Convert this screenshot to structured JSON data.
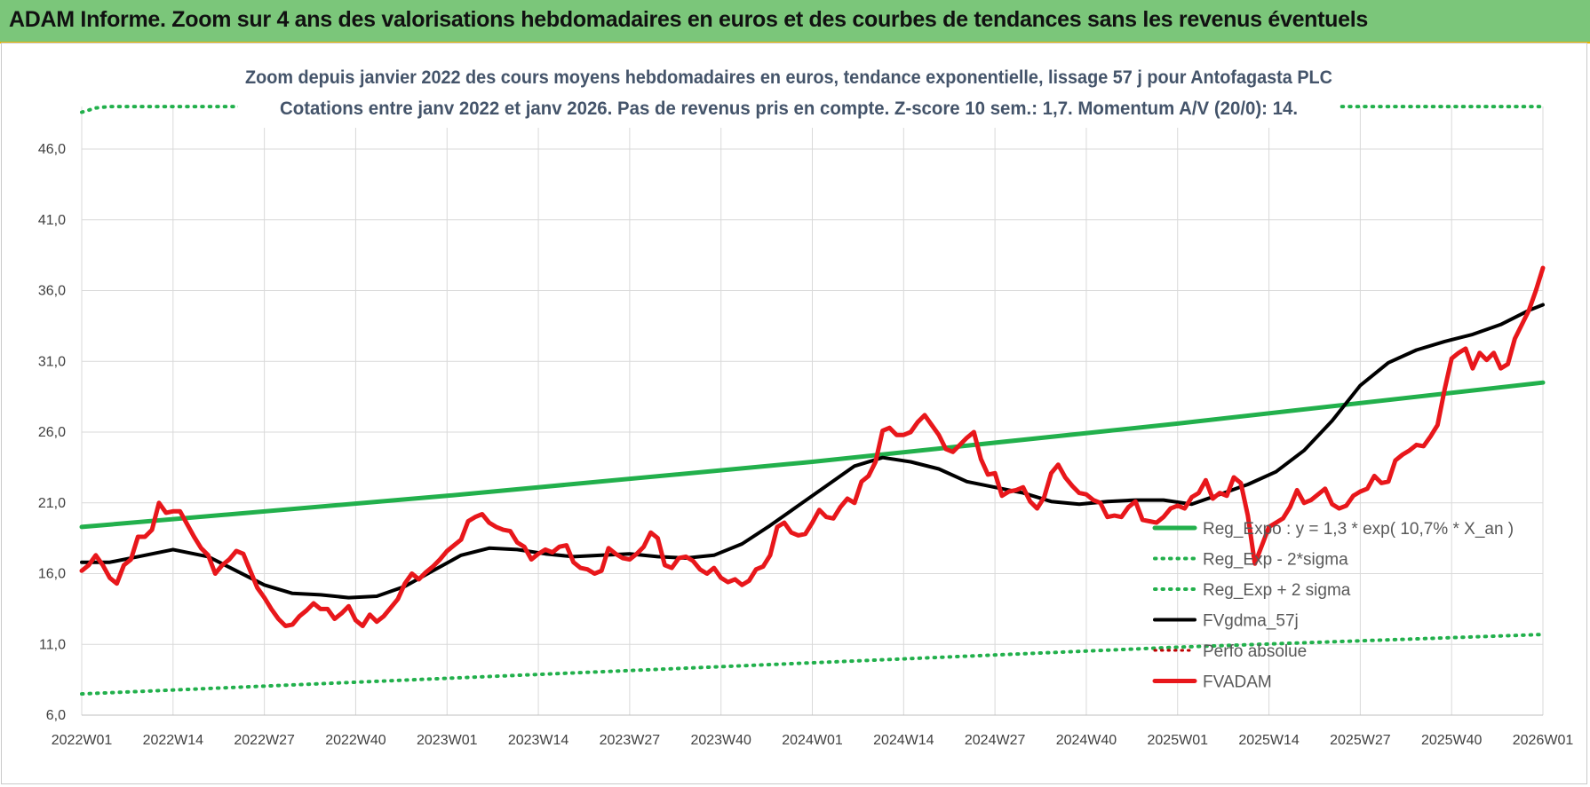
{
  "banner": {
    "title": "ADAM Informe. Zoom sur 4 ans des valorisations hebdomadaires en euros et des courbes de tendances sans les revenus éventuels"
  },
  "colors": {
    "banner_bg": "#7bc67a",
    "reg_expo": "#22b04c",
    "moving_average": "#000000",
    "fvadam": "#e8171b",
    "perfo_absolue": "#c00000",
    "grid": "#d9d9d9"
  },
  "chart_data": {
    "type": "line",
    "title": "Zoom depuis janvier 2022 des cours moyens hebdomadaires en euros, tendance exponentielle, lissage 57 j pour Antofagasta PLC",
    "subtitle": "Cotations entre janv 2022 et janv 2026. Pas de revenus pris en compte. Z-score 10 sem.: 1,7. Momentum A/V (20/0): 14.",
    "xlabel": "",
    "ylabel": "",
    "ylim": [
      6,
      49
    ],
    "yticks": [
      "6,0",
      "11,0",
      "16,0",
      "21,0",
      "26,0",
      "31,0",
      "36,0",
      "41,0",
      "46,0"
    ],
    "xticks": [
      "2022W01",
      "2022W14",
      "2022W27",
      "2022W40",
      "2023W01",
      "2023W14",
      "2023W27",
      "2023W40",
      "2024W01",
      "2024W14",
      "2024W27",
      "2024W40",
      "2025W01",
      "2025W14",
      "2025W27",
      "2025W40",
      "2026W01"
    ],
    "x_range_weeks": [
      0,
      208
    ],
    "grid": true,
    "legend_position": "right",
    "legend": [
      "Reg_Expo : y = 1,3 * exp( 10,7% *  X_an )",
      "Reg_Exp - 2*sigma",
      "Reg_Exp + 2 sigma",
      "FVgdma_57j",
      "Perfo absolue",
      "FVADAM"
    ],
    "series": [
      {
        "name": "Reg_Expo : y = 1,3 * exp( 10,7% *  X_an )",
        "style": "solid-thick",
        "x": [
          0,
          52,
          104,
          156,
          208
        ],
        "y": [
          19.3,
          21.5,
          23.9,
          26.6,
          29.5
        ]
      },
      {
        "name": "Reg_Exp - 2*sigma",
        "style": "dotted",
        "x": [
          0,
          52,
          104,
          156,
          208
        ],
        "y": [
          7.5,
          8.6,
          9.7,
          10.8,
          11.7
        ]
      },
      {
        "name": "Reg_Exp + 2 sigma",
        "style": "dotted",
        "x": [
          0,
          2,
          4,
          12,
          208
        ],
        "y": [
          48.6,
          48.9,
          49.0,
          49.0,
          49.0
        ]
      },
      {
        "name": "FVgdma_57j",
        "style": "solid",
        "x": [
          0,
          4,
          8,
          13,
          18,
          22,
          26,
          30,
          34,
          38,
          42,
          46,
          50,
          54,
          58,
          62,
          66,
          70,
          74,
          78,
          82,
          86,
          90,
          94,
          98,
          102,
          106,
          110,
          114,
          118,
          122,
          126,
          130,
          134,
          138,
          142,
          146,
          150,
          154,
          158,
          162,
          166,
          170,
          174,
          178,
          182,
          186,
          190,
          194,
          198,
          202,
          206,
          208
        ],
        "y": [
          16.8,
          16.8,
          17.2,
          17.7,
          17.2,
          16.2,
          15.2,
          14.6,
          14.5,
          14.3,
          14.4,
          15.1,
          16.2,
          17.3,
          17.8,
          17.7,
          17.4,
          17.2,
          17.3,
          17.4,
          17.2,
          17.1,
          17.3,
          18.1,
          19.4,
          20.8,
          22.2,
          23.6,
          24.2,
          23.9,
          23.4,
          22.5,
          22.1,
          21.7,
          21.1,
          20.9,
          21.1,
          21.2,
          21.2,
          20.9,
          21.6,
          22.3,
          23.2,
          24.7,
          26.8,
          29.3,
          30.9,
          31.8,
          32.4,
          32.9,
          33.6,
          34.6,
          35.0
        ]
      },
      {
        "name": "FVADAM",
        "style": "solid-thick",
        "x": [
          0,
          1,
          2,
          3,
          4,
          5,
          6,
          7,
          8,
          9,
          10,
          11,
          12,
          13,
          14,
          15,
          16,
          17,
          18,
          19,
          20,
          21,
          22,
          23,
          24,
          25,
          26,
          27,
          28,
          29,
          30,
          31,
          32,
          33,
          34,
          35,
          36,
          37,
          38,
          39,
          40,
          41,
          42,
          43,
          44,
          45,
          46,
          47,
          48,
          49,
          50,
          51,
          52,
          53,
          54,
          55,
          56,
          57,
          58,
          59,
          60,
          61,
          62,
          63,
          64,
          65,
          66,
          67,
          68,
          69,
          70,
          71,
          72,
          73,
          74,
          75,
          76,
          77,
          78,
          79,
          80,
          81,
          82,
          83,
          84,
          85,
          86,
          87,
          88,
          89,
          90,
          91,
          92,
          93,
          94,
          95,
          96,
          97,
          98,
          99,
          100,
          101,
          102,
          103,
          104,
          105,
          106,
          107,
          108,
          109,
          110,
          111,
          112,
          113,
          114,
          115,
          116,
          117,
          118,
          119,
          120,
          121,
          122,
          123,
          124,
          125,
          126,
          127,
          128,
          129,
          130,
          131,
          132,
          133,
          134,
          135,
          136,
          137,
          138,
          139,
          140,
          141,
          142,
          143,
          144,
          145,
          146,
          147,
          148,
          149,
          150,
          151,
          152,
          153,
          154,
          155,
          156,
          157,
          158,
          159,
          160,
          161,
          162,
          163,
          164,
          165,
          166,
          167,
          168,
          169,
          170,
          171,
          172,
          173,
          174,
          175,
          176,
          177,
          178,
          179,
          180,
          181,
          182,
          183,
          184,
          185,
          186,
          187,
          188,
          189,
          190,
          191,
          192,
          193,
          194,
          195,
          196,
          197,
          198,
          199,
          200,
          201,
          202,
          203,
          204,
          205,
          206,
          207,
          208
        ],
        "y": [
          16.2,
          16.6,
          17.3,
          16.6,
          15.7,
          15.3,
          16.6,
          17.0,
          18.6,
          18.6,
          19.1,
          21.0,
          20.3,
          20.4,
          20.4,
          19.5,
          18.6,
          17.8,
          17.3,
          16.0,
          16.6,
          17.0,
          17.6,
          17.4,
          16.2,
          15.0,
          14.3,
          13.5,
          12.8,
          12.3,
          12.4,
          13.0,
          13.4,
          13.9,
          13.5,
          13.5,
          12.8,
          13.2,
          13.7,
          12.7,
          12.3,
          13.1,
          12.6,
          13.0,
          13.6,
          14.2,
          15.3,
          16.0,
          15.6,
          16.1,
          16.5,
          17.0,
          17.6,
          18.0,
          18.4,
          19.7,
          20.0,
          20.2,
          19.6,
          19.3,
          19.1,
          19.0,
          18.2,
          17.9,
          17.0,
          17.4,
          17.7,
          17.5,
          17.9,
          18.0,
          16.8,
          16.4,
          16.3,
          16.0,
          16.2,
          17.8,
          17.4,
          17.1,
          17.0,
          17.4,
          17.9,
          18.9,
          18.5,
          16.6,
          16.4,
          17.1,
          17.2,
          16.9,
          16.3,
          16.0,
          16.4,
          15.7,
          15.4,
          15.6,
          15.2,
          15.5,
          16.3,
          16.5,
          17.3,
          19.3,
          19.6,
          18.9,
          18.7,
          18.8,
          19.6,
          20.5,
          20.0,
          19.9,
          20.7,
          21.3,
          21.0,
          22.5,
          22.9,
          23.9,
          26.1,
          26.3,
          25.8,
          25.8,
          26.0,
          26.7,
          27.2,
          26.5,
          25.8,
          24.8,
          24.6,
          25.1,
          25.6,
          26.0,
          24.1,
          23.0,
          23.1,
          21.5,
          21.8,
          21.9,
          22.1,
          21.1,
          20.6,
          21.4,
          23.1,
          23.7,
          22.8,
          22.2,
          21.7,
          21.6,
          21.2,
          21.0,
          20.0,
          20.1,
          20.0,
          20.7,
          21.1,
          19.8,
          19.7,
          19.6,
          20.0,
          20.6,
          20.8,
          20.6,
          21.4,
          21.7,
          22.6,
          21.3,
          21.7,
          21.5,
          22.8,
          22.4,
          20.1,
          16.7,
          18.0,
          19.3,
          19.6,
          19.9,
          20.7,
          21.9,
          21.0,
          21.2,
          21.6,
          22.0,
          20.9,
          20.6,
          20.8,
          21.5,
          21.8,
          22.0,
          22.9,
          22.4,
          22.5,
          24.0,
          24.4,
          24.7,
          25.1,
          25.0,
          25.7,
          26.5,
          29.0,
          31.2,
          31.6,
          31.9,
          30.5,
          31.6,
          31.1,
          31.6,
          30.5,
          30.8,
          32.6,
          33.6,
          34.6,
          36.0,
          37.6
        ]
      }
    ]
  }
}
